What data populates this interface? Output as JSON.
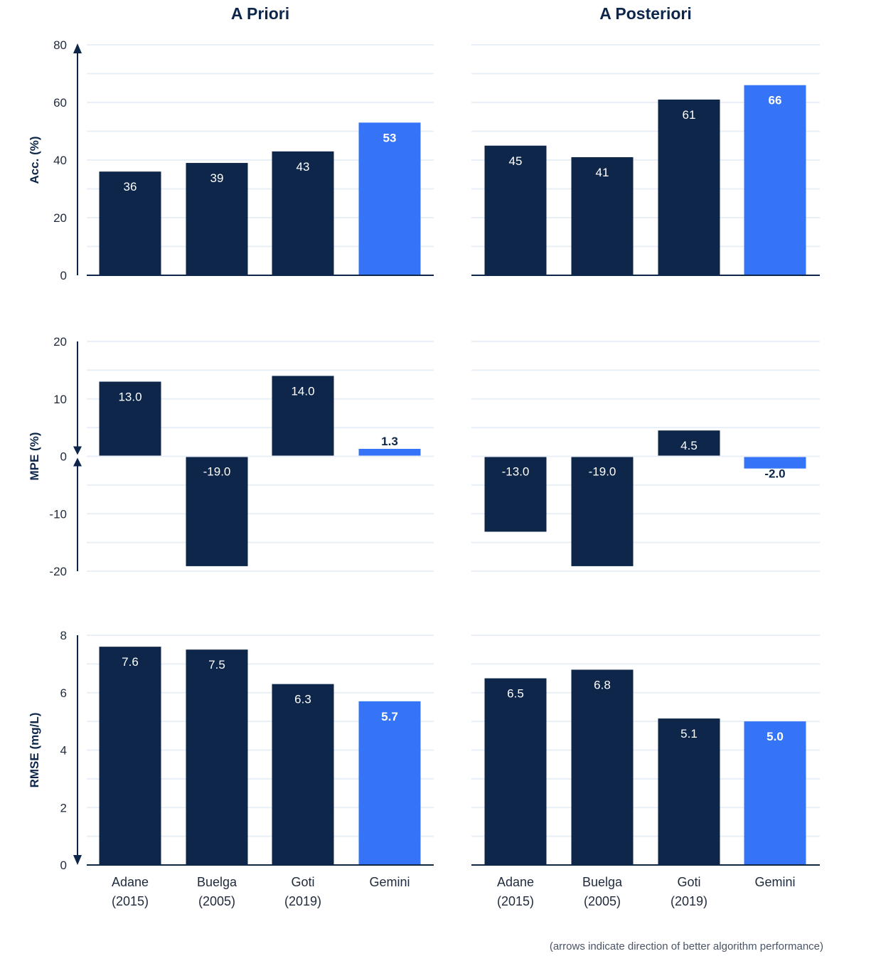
{
  "colors": {
    "baseline": "#0d2649",
    "highlight": "#3574f6",
    "grid": "#e8eff7"
  },
  "column_titles": [
    "A Priori",
    "A Posteriori"
  ],
  "categories": [
    [
      "Adane",
      "(2015)"
    ],
    [
      "Buelga",
      "(2005)"
    ],
    [
      "Goti",
      "(2019)"
    ],
    [
      "Gemini",
      ""
    ]
  ],
  "note": "(arrows indicate direction of better algorithm performance)",
  "chart_data": [
    {
      "type": "bar",
      "title": "A Priori",
      "ylabel": "Acc. (%)",
      "ylim": [
        0,
        80
      ],
      "yticks": [
        0,
        20,
        40,
        60,
        80
      ],
      "better": "up",
      "values": [
        36,
        39,
        43,
        53
      ],
      "labels": [
        "36",
        "39",
        "43",
        "53"
      ],
      "grid": true
    },
    {
      "type": "bar",
      "title": "A Posteriori",
      "ylabel": "",
      "ylim": [
        0,
        80
      ],
      "better": "up",
      "values": [
        45,
        41,
        61,
        66
      ],
      "labels": [
        "45",
        "41",
        "61",
        "66"
      ],
      "grid": true
    },
    {
      "type": "bar",
      "title": "",
      "ylabel": "MPE (%)",
      "ylim": [
        -20,
        20
      ],
      "yticks": [
        -20,
        -10,
        0,
        10,
        20
      ],
      "better": "toward zero",
      "values": [
        13.0,
        -19.0,
        14.0,
        1.3
      ],
      "labels": [
        "13.0",
        "-19.0",
        "14.0",
        "1.3"
      ],
      "grid": true
    },
    {
      "type": "bar",
      "title": "",
      "ylabel": "",
      "ylim": [
        -20,
        20
      ],
      "better": "toward zero",
      "values": [
        -13.0,
        -19.0,
        4.5,
        -2.0
      ],
      "labels": [
        "-13.0",
        "-19.0",
        "4.5",
        "-2.0"
      ],
      "grid": true
    },
    {
      "type": "bar",
      "title": "",
      "ylabel": "RMSE (mg/L)",
      "ylim": [
        0,
        8
      ],
      "yticks": [
        0,
        2,
        4,
        6,
        8
      ],
      "better": "down",
      "values": [
        7.6,
        7.5,
        6.3,
        5.7
      ],
      "labels": [
        "7.6",
        "7.5",
        "6.3",
        "5.7"
      ],
      "grid": true
    },
    {
      "type": "bar",
      "title": "",
      "ylabel": "",
      "ylim": [
        0,
        8
      ],
      "better": "down",
      "values": [
        6.5,
        6.8,
        5.1,
        5.0
      ],
      "labels": [
        "6.5",
        "6.8",
        "5.1",
        "5.0"
      ],
      "grid": true
    }
  ]
}
